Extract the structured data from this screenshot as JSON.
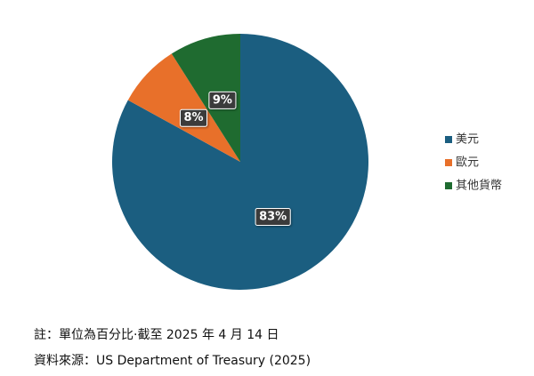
{
  "chart_data": {
    "type": "pie",
    "categories": [
      "美元",
      "歐元",
      "其他貨幣"
    ],
    "values": [
      83,
      8,
      9
    ],
    "value_labels": [
      "83%",
      "8%",
      "9%"
    ],
    "colors": [
      "#1b5e80",
      "#e8702a",
      "#1f6b30"
    ],
    "legend": "right"
  },
  "notes": [
    "註：單位為百分比·截至 2025 年 4 月 14 日",
    "資料來源：US Department of Treasury (2025)"
  ]
}
